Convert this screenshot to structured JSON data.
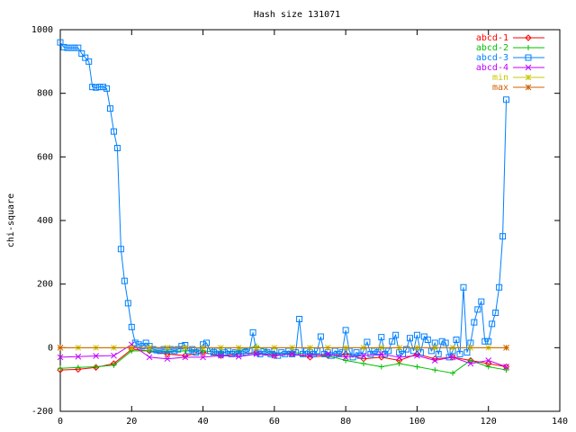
{
  "chart_data": {
    "type": "line",
    "title": "Hash size 131071",
    "y_label": "chi-square",
    "xlim": [
      0,
      140
    ],
    "xticks": [
      0,
      20,
      40,
      60,
      80,
      100,
      120,
      140
    ],
    "ylim": [
      -200,
      1000
    ],
    "yticks": [
      -200,
      0,
      200,
      400,
      600,
      800,
      1000
    ],
    "legend": "top-right",
    "series": [
      {
        "name": "abcd-1",
        "color": "#ff0000",
        "marker": "diamond",
        "x": [
          0,
          5,
          10,
          15,
          20,
          25,
          30,
          35,
          40,
          45,
          50,
          55,
          60,
          65,
          70,
          75,
          80,
          85,
          90,
          95,
          100,
          105,
          110,
          115,
          120,
          125
        ],
        "values": [
          -70,
          -68,
          -62,
          -50,
          -5,
          -10,
          -20,
          -25,
          -15,
          -25,
          -20,
          -15,
          -25,
          -20,
          -30,
          -25,
          -20,
          -35,
          -30,
          -40,
          -20,
          -35,
          -30,
          -40,
          -50,
          -60
        ]
      },
      {
        "name": "abcd-2",
        "color": "#00c000",
        "marker": "plus",
        "x": [
          0,
          5,
          10,
          15,
          20,
          25,
          30,
          35,
          40,
          45,
          50,
          55,
          60,
          65,
          70,
          75,
          80,
          85,
          90,
          95,
          100,
          105,
          110,
          115,
          120,
          125
        ],
        "values": [
          -65,
          -62,
          -60,
          -55,
          -10,
          -10,
          -12,
          -10,
          -10,
          -15,
          -10,
          5,
          -20,
          -15,
          -20,
          -25,
          -40,
          -50,
          -60,
          -50,
          -60,
          -70,
          -80,
          -40,
          -60,
          -70
        ]
      },
      {
        "name": "abcd-3",
        "color": "#0080ff",
        "marker": "square",
        "x": [
          0,
          1,
          2,
          3,
          4,
          5,
          6,
          7,
          8,
          9,
          10,
          11,
          12,
          13,
          14,
          15,
          16,
          17,
          18,
          19,
          20,
          21,
          22,
          23,
          24,
          25,
          26,
          27,
          28,
          29,
          30,
          31,
          32,
          33,
          34,
          35,
          36,
          37,
          38,
          39,
          40,
          41,
          42,
          43,
          44,
          45,
          46,
          47,
          48,
          49,
          50,
          51,
          52,
          53,
          54,
          55,
          56,
          57,
          58,
          59,
          60,
          61,
          62,
          63,
          64,
          65,
          66,
          67,
          68,
          69,
          70,
          71,
          72,
          73,
          74,
          75,
          76,
          77,
          78,
          79,
          80,
          81,
          82,
          83,
          84,
          85,
          86,
          87,
          88,
          89,
          90,
          91,
          92,
          93,
          94,
          95,
          96,
          97,
          98,
          99,
          100,
          101,
          102,
          103,
          104,
          105,
          106,
          107,
          108,
          109,
          110,
          111,
          112,
          113,
          114,
          115,
          116,
          117,
          118,
          119,
          120,
          121,
          122,
          123,
          124,
          125
        ],
        "values": [
          960,
          945,
          943,
          943,
          943,
          943,
          925,
          912,
          900,
          820,
          818,
          820,
          820,
          815,
          752,
          680,
          628,
          310,
          210,
          140,
          65,
          15,
          10,
          5,
          15,
          5,
          -5,
          -8,
          -10,
          -5,
          -8,
          -5,
          -10,
          -5,
          5,
          8,
          -10,
          -5,
          -15,
          -10,
          10,
          15,
          -10,
          -15,
          -10,
          -20,
          -15,
          -10,
          -20,
          -15,
          -20,
          -10,
          -15,
          -10,
          48,
          -15,
          -20,
          -10,
          -15,
          -20,
          -10,
          -25,
          -15,
          -20,
          -10,
          -20,
          -15,
          90,
          -20,
          -10,
          -15,
          -20,
          -10,
          35,
          -20,
          -15,
          -25,
          -10,
          -20,
          -15,
          55,
          -10,
          -30,
          -15,
          -25,
          -10,
          18,
          -20,
          -10,
          -15,
          33,
          -20,
          -10,
          20,
          40,
          -15,
          -20,
          -5,
          30,
          -10,
          40,
          -15,
          35,
          25,
          -10,
          15,
          -20,
          20,
          15,
          -30,
          -10,
          25,
          -20,
          190,
          -15,
          15,
          80,
          120,
          145,
          20,
          20,
          75,
          110,
          190,
          350,
          780
        ]
      },
      {
        "name": "abcd-4",
        "color": "#c000ff",
        "marker": "cross",
        "x": [
          0,
          5,
          10,
          15,
          20,
          25,
          30,
          35,
          40,
          45,
          50,
          55,
          60,
          65,
          70,
          75,
          80,
          85,
          90,
          95,
          100,
          105,
          110,
          115,
          120,
          125
        ],
        "values": [
          -30,
          -28,
          -26,
          -25,
          10,
          -30,
          -35,
          -30,
          -30,
          -25,
          -28,
          -20,
          -25,
          -20,
          -25,
          -20,
          -30,
          -25,
          -20,
          -30,
          -25,
          -40,
          -30,
          -50,
          -40,
          -60
        ]
      },
      {
        "name": "min",
        "color": "#c8c800",
        "marker": "star",
        "x": [
          0,
          5,
          10,
          15,
          20,
          25,
          30,
          35,
          40,
          45,
          50,
          55,
          60,
          65,
          70,
          75,
          80,
          85,
          90,
          95,
          100,
          105,
          110,
          115,
          120,
          125
        ],
        "values": [
          0,
          0,
          0,
          0,
          0,
          0,
          0,
          0,
          0,
          0,
          0,
          0,
          0,
          0,
          0,
          0,
          0,
          0,
          0,
          0,
          0,
          0,
          0,
          0,
          0,
          0
        ]
      },
      {
        "name": "max",
        "color": "#d06000",
        "marker": "star",
        "x": [
          0,
          125
        ],
        "values": [
          0,
          0
        ]
      }
    ]
  }
}
